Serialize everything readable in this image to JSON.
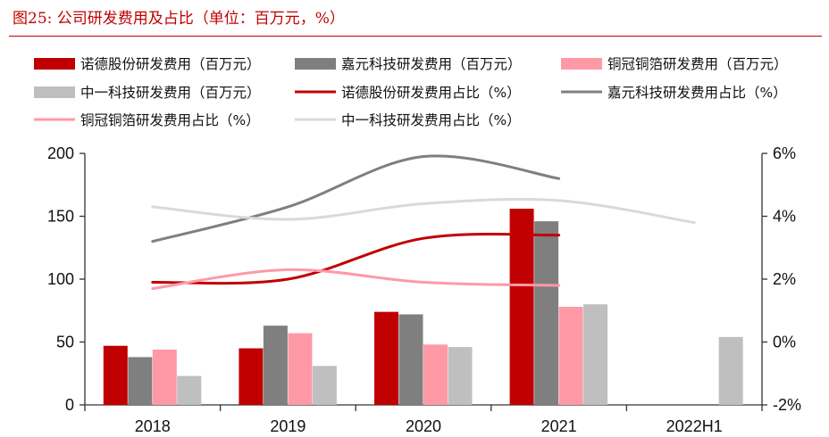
{
  "figure": {
    "title": "图25:  公司研发费用及占比（单位：百万元，%）"
  },
  "chart_data": {
    "type": "bar",
    "categories": [
      "2018",
      "2019",
      "2020",
      "2021",
      "2022H1"
    ],
    "ylim": [
      0,
      200
    ],
    "yticks": [
      0,
      50,
      100,
      150,
      200
    ],
    "y2lim": [
      -2,
      6
    ],
    "y2ticks": [
      "-2%",
      "0%",
      "2%",
      "4%",
      "6%"
    ],
    "y2tick_values": [
      -2,
      0,
      2,
      4,
      6
    ],
    "legend_position": "top",
    "grid": false,
    "bar_series": [
      {
        "name": "诺德股份研发费用（百万元）",
        "color": "#c00000",
        "values": [
          47,
          45,
          74,
          156,
          null
        ]
      },
      {
        "name": "嘉元科技研发费用（百万元）",
        "color": "#7f7f7f",
        "values": [
          38,
          63,
          72,
          146,
          null
        ]
      },
      {
        "name": "铜冠铜箔研发费用（百万元）",
        "color": "#ff99a6",
        "values": [
          44,
          57,
          48,
          78,
          null
        ]
      },
      {
        "name": "中一科技研发费用（百万元）",
        "color": "#bfbfbf",
        "values": [
          23,
          31,
          46,
          80,
          54
        ]
      }
    ],
    "line_series": [
      {
        "name": "诺德股份研发费用占比（%）",
        "color": "#c00000",
        "values": [
          1.9,
          2.0,
          3.3,
          3.4,
          null
        ]
      },
      {
        "name": "嘉元科技研发费用占比（%）",
        "color": "#7f7f7f",
        "values": [
          3.2,
          4.3,
          5.9,
          5.2,
          null
        ]
      },
      {
        "name": "铜冠铜箔研发费用占比（%）",
        "color": "#ff99a6",
        "values": [
          1.7,
          2.3,
          1.9,
          1.8,
          null
        ]
      },
      {
        "name": "中一科技研发费用占比（%）",
        "color": "#d9d9d9",
        "values": [
          4.3,
          3.9,
          4.4,
          4.5,
          3.8
        ]
      }
    ]
  }
}
